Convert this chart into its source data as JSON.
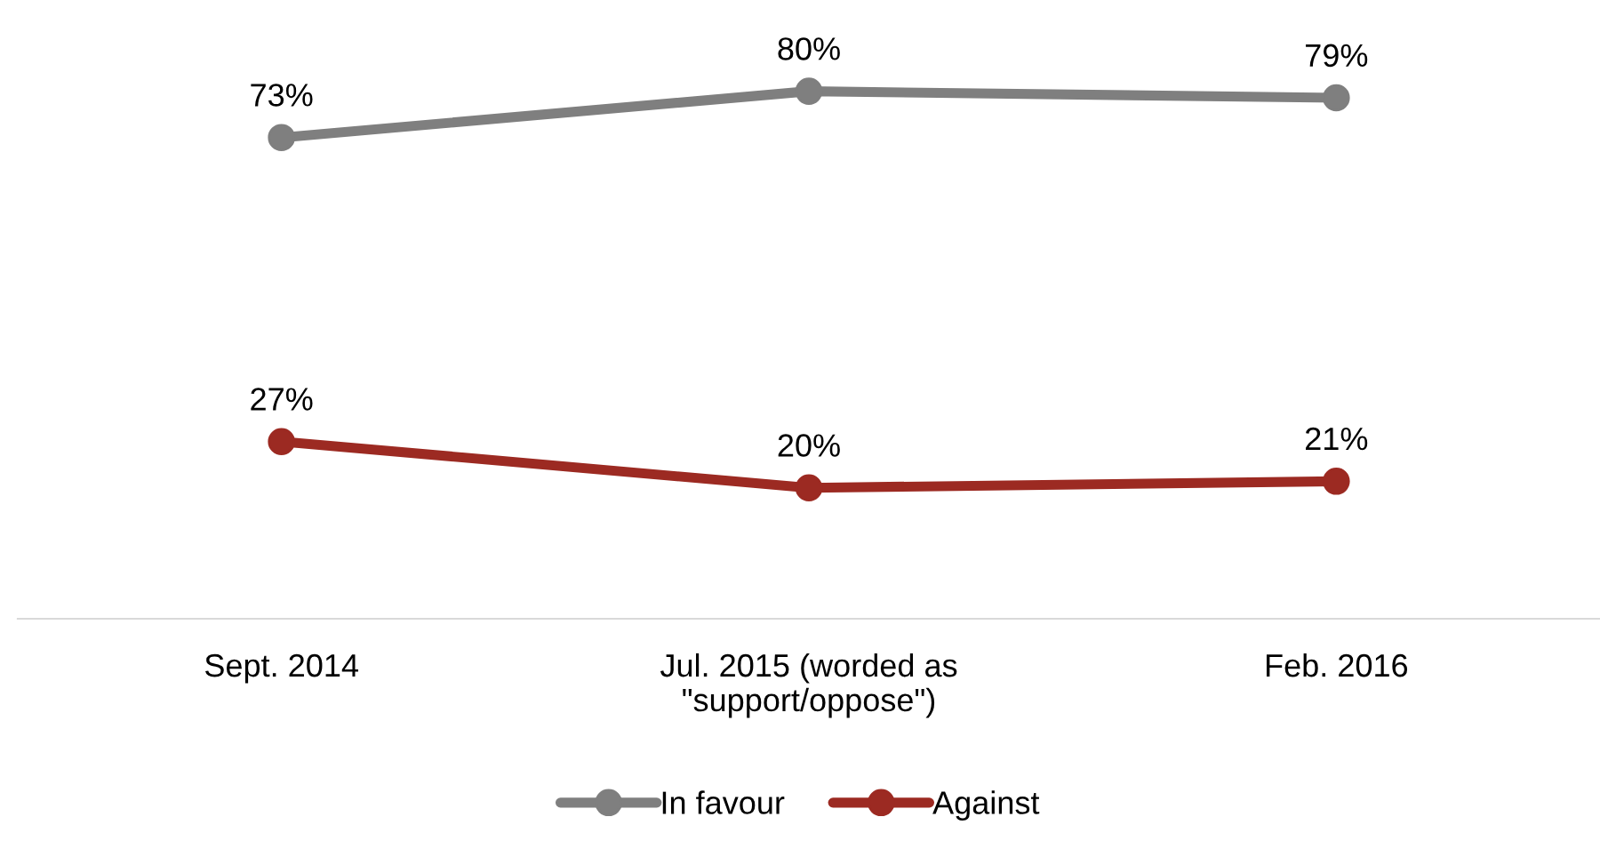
{
  "chart_data": {
    "type": "line",
    "categories": [
      "Sept. 2014",
      "Jul. 2015 (worded as\n\"support/oppose\")",
      "Feb. 2016"
    ],
    "series": [
      {
        "name": "In favour",
        "color": "#7f7f7f",
        "values": [
          73,
          80,
          79
        ],
        "value_labels": [
          "73%",
          "80%",
          "79%"
        ]
      },
      {
        "name": "Against",
        "color": "#9c2a22",
        "values": [
          27,
          20,
          21
        ],
        "value_labels": [
          "27%",
          "20%",
          "21%"
        ]
      }
    ],
    "marker": "circle",
    "line_style": "solid",
    "legend": "bottom"
  }
}
